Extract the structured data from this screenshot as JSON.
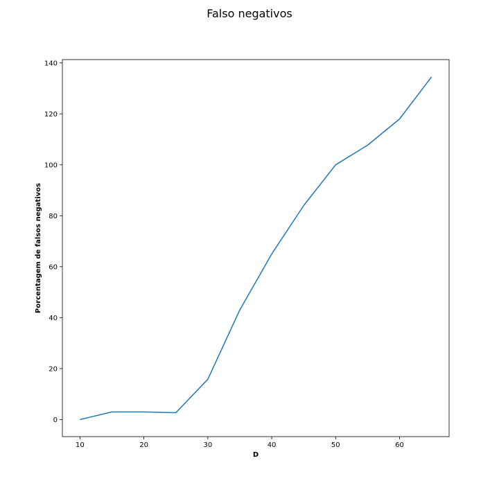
{
  "chart_data": {
    "type": "line",
    "title": "Falso negativos",
    "xlabel": "D",
    "ylabel": "Porcentagem de falsos negativos",
    "xlim": [
      7.25,
      67.75
    ],
    "ylim": [
      -6.7,
      141.3
    ],
    "xticks": [
      10,
      20,
      30,
      40,
      50,
      60
    ],
    "yticks": [
      0,
      20,
      40,
      60,
      80,
      100,
      120,
      140
    ],
    "grid": false,
    "series": [
      {
        "color": "#1f77b4",
        "x": [
          10,
          15,
          20,
          25,
          30,
          35,
          40,
          45,
          50,
          55,
          60,
          65
        ],
        "y": [
          0,
          3,
          3,
          2.7,
          15.8,
          43,
          65,
          84,
          100,
          107.7,
          118,
          134.5
        ]
      }
    ]
  }
}
